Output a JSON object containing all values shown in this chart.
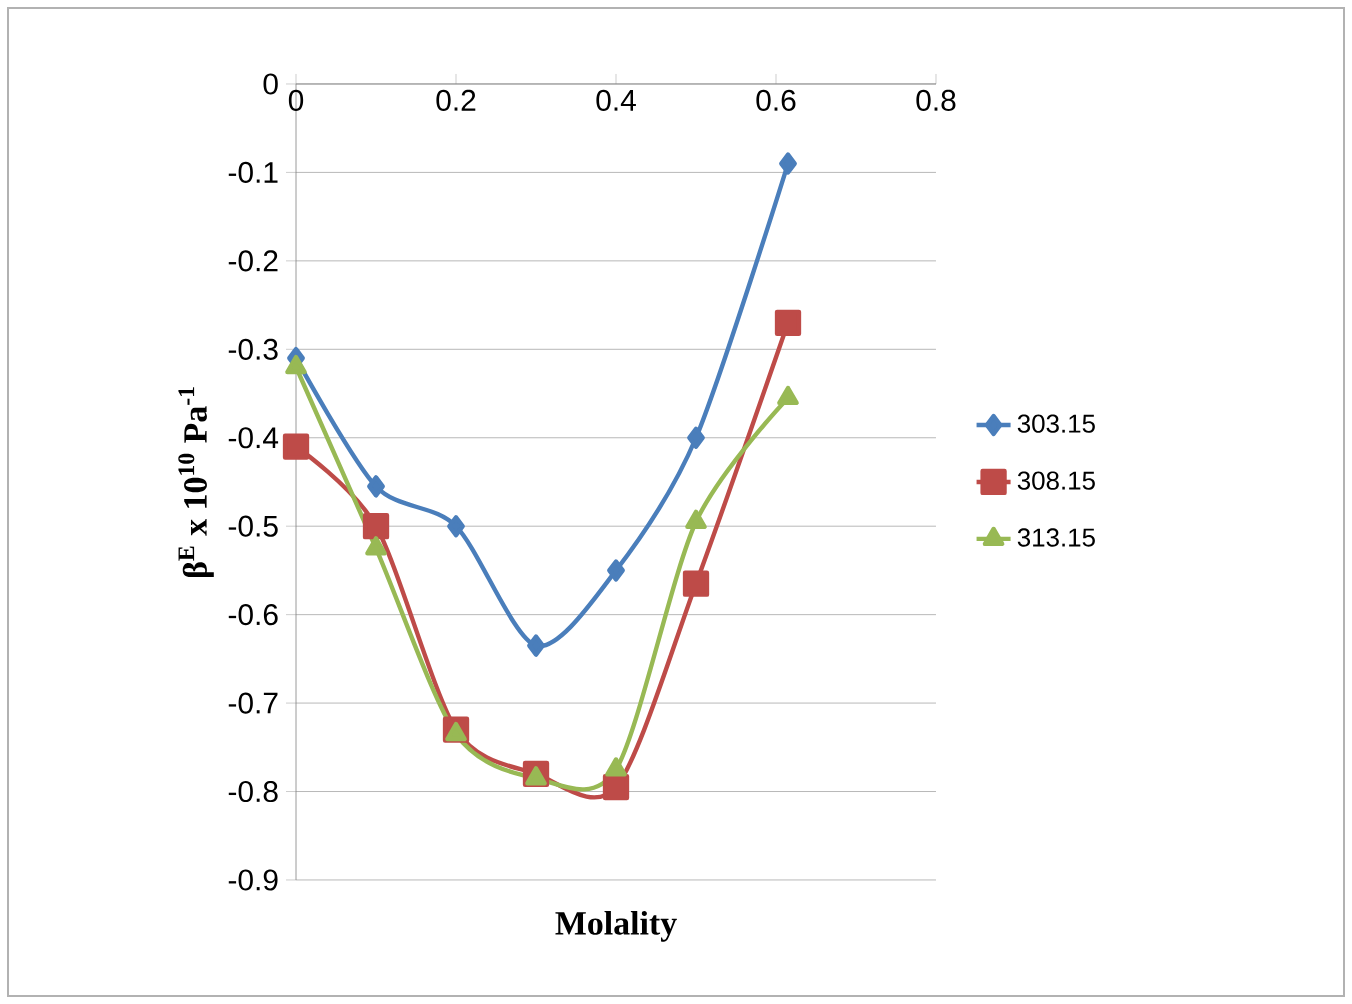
{
  "chart_data": {
    "type": "line",
    "xlabel": "Molality",
    "ylabel": "β$^{E}$ x 10$^{10}$ Pa$^{-1}$",
    "x": [
      0,
      0.1,
      0.2,
      0.3,
      0.4,
      0.5,
      0.615
    ],
    "series": [
      {
        "name": "303.15",
        "color": "#4a7ebb",
        "marker": "diamond",
        "values": [
          -0.31,
          -0.455,
          -0.5,
          -0.635,
          -0.55,
          -0.4,
          -0.09
        ]
      },
      {
        "name": "308.15",
        "color": "#be4b48",
        "marker": "square",
        "values": [
          -0.41,
          -0.5,
          -0.73,
          -0.78,
          -0.795,
          -0.565,
          -0.27
        ]
      },
      {
        "name": "313.15",
        "color": "#98b954",
        "marker": "triangle",
        "values": [
          -0.32,
          -0.525,
          -0.735,
          -0.785,
          -0.775,
          -0.495,
          -0.355
        ]
      }
    ],
    "xlim": [
      0,
      0.8
    ],
    "xticks": [
      0,
      0.2,
      0.4,
      0.6,
      0.8
    ],
    "ylim": [
      -0.9,
      0
    ],
    "yticks": [
      -0.9,
      -0.8,
      -0.7,
      -0.6,
      -0.5,
      -0.4,
      -0.3,
      -0.2,
      -0.1,
      0
    ],
    "grid": "y",
    "legend": "right",
    "line_style": "solid"
  }
}
